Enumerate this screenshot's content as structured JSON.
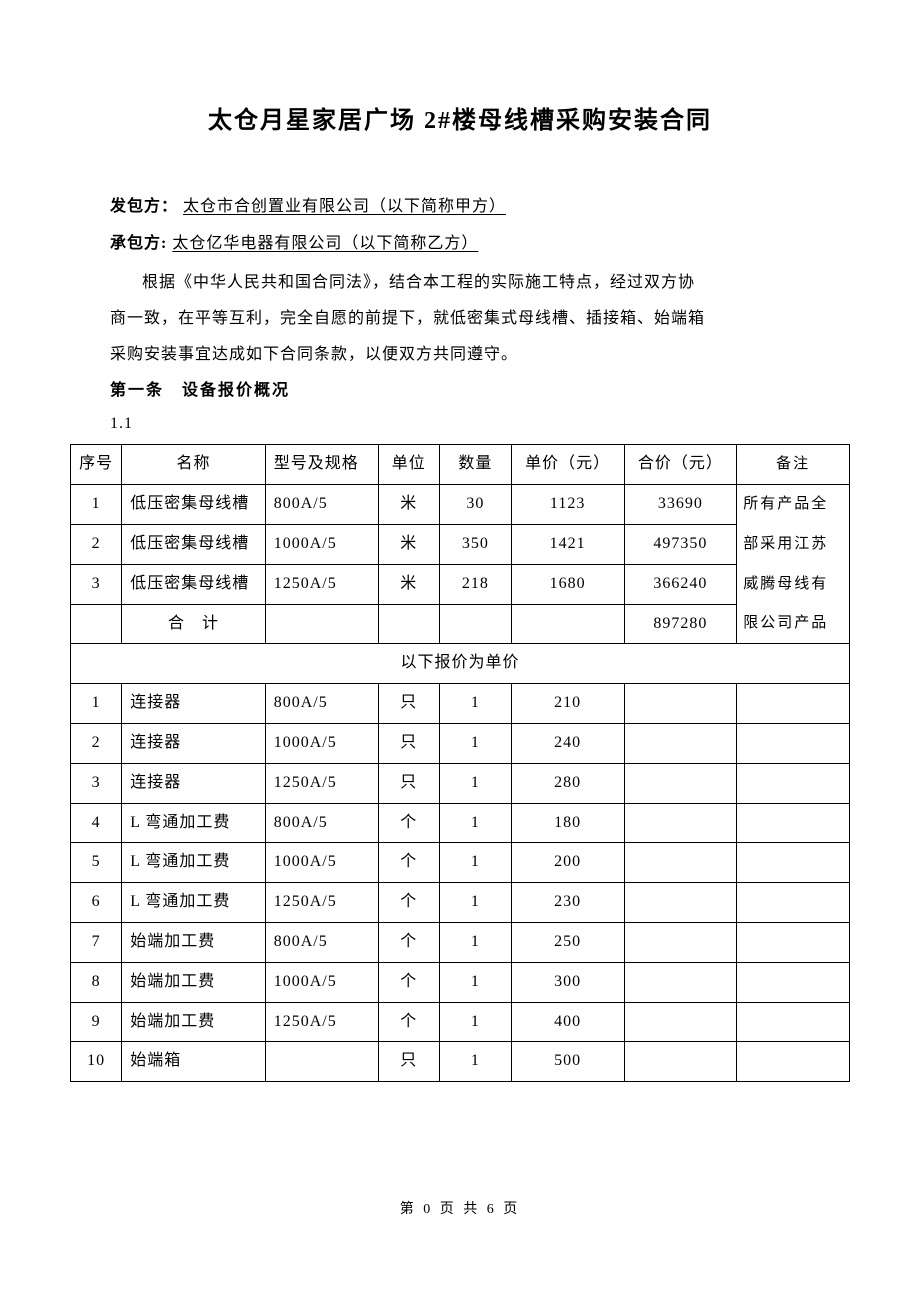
{
  "title": "太仓月星家居广场 2#楼母线槽采购安装合同",
  "partyA": {
    "label": "发包方：",
    "value": "太仓市合创置业有限公司（以下简称甲方）"
  },
  "partyB": {
    "label": "承包方:",
    "value": "太仓亿华电器有限公司（以下简称乙方）"
  },
  "intro": {
    "p1": "根据《中华人民共和国合同法》，结合本工程的实际施工特点，经过双方协",
    "p2": "商一致，在平等互利，完全自愿的前提下，就低密集式母线槽、插接箱、始端箱",
    "p3": "采购安装事宜达成如下合同条款，以便双方共同遵守。"
  },
  "section1": {
    "heading": "第一条　设备报价概况",
    "subnum": "1.1"
  },
  "table": {
    "headers": {
      "seq": "序号",
      "name": "名称",
      "spec": "型号及规格",
      "unit": "单位",
      "qty": "数量",
      "price": "单价（元）",
      "total": "合价（元）",
      "note": "备注"
    },
    "group1": {
      "rows": [
        {
          "seq": "1",
          "name": "低压密集母线槽",
          "spec": "800A/5",
          "unit": "米",
          "qty": "30",
          "price": "1123",
          "total": "33690"
        },
        {
          "seq": "2",
          "name": "低压密集母线槽",
          "spec": "1000A/5",
          "unit": "米",
          "qty": "350",
          "price": "1421",
          "total": "497350"
        },
        {
          "seq": "3",
          "name": "低压密集母线槽",
          "spec": "1250A/5",
          "unit": "米",
          "qty": "218",
          "price": "1680",
          "total": "366240"
        }
      ],
      "sum": {
        "label": "合　计",
        "total": "897280"
      },
      "noteLines": [
        "所有产品全",
        "部采用江苏",
        "威腾母线有",
        "限公司产品"
      ]
    },
    "divider": "以下报价为单价",
    "group2": {
      "rows": [
        {
          "seq": "1",
          "name": "连接器",
          "spec": "800A/5",
          "unit": "只",
          "qty": "1",
          "price": "210"
        },
        {
          "seq": "2",
          "name": "连接器",
          "spec": "1000A/5",
          "unit": "只",
          "qty": "1",
          "price": "240"
        },
        {
          "seq": "3",
          "name": "连接器",
          "spec": "1250A/5",
          "unit": "只",
          "qty": "1",
          "price": "280"
        },
        {
          "seq": "4",
          "name": "L 弯通加工费",
          "spec": "800A/5",
          "unit": "个",
          "qty": "1",
          "price": "180"
        },
        {
          "seq": "5",
          "name": "L 弯通加工费",
          "spec": "1000A/5",
          "unit": "个",
          "qty": "1",
          "price": "200"
        },
        {
          "seq": "6",
          "name": "L 弯通加工费",
          "spec": "1250A/5",
          "unit": "个",
          "qty": "1",
          "price": "230"
        },
        {
          "seq": "7",
          "name": "始端加工费",
          "spec": "800A/5",
          "unit": "个",
          "qty": "1",
          "price": "250"
        },
        {
          "seq": "8",
          "name": "始端加工费",
          "spec": "1000A/5",
          "unit": "个",
          "qty": "1",
          "price": "300"
        },
        {
          "seq": "9",
          "name": "始端加工费",
          "spec": "1250A/5",
          "unit": "个",
          "qty": "1",
          "price": "400"
        },
        {
          "seq": "10",
          "name": "始端箱",
          "spec": "",
          "unit": "只",
          "qty": "1",
          "price": "500"
        }
      ]
    }
  },
  "footer": "第 0 页 共 6 页"
}
